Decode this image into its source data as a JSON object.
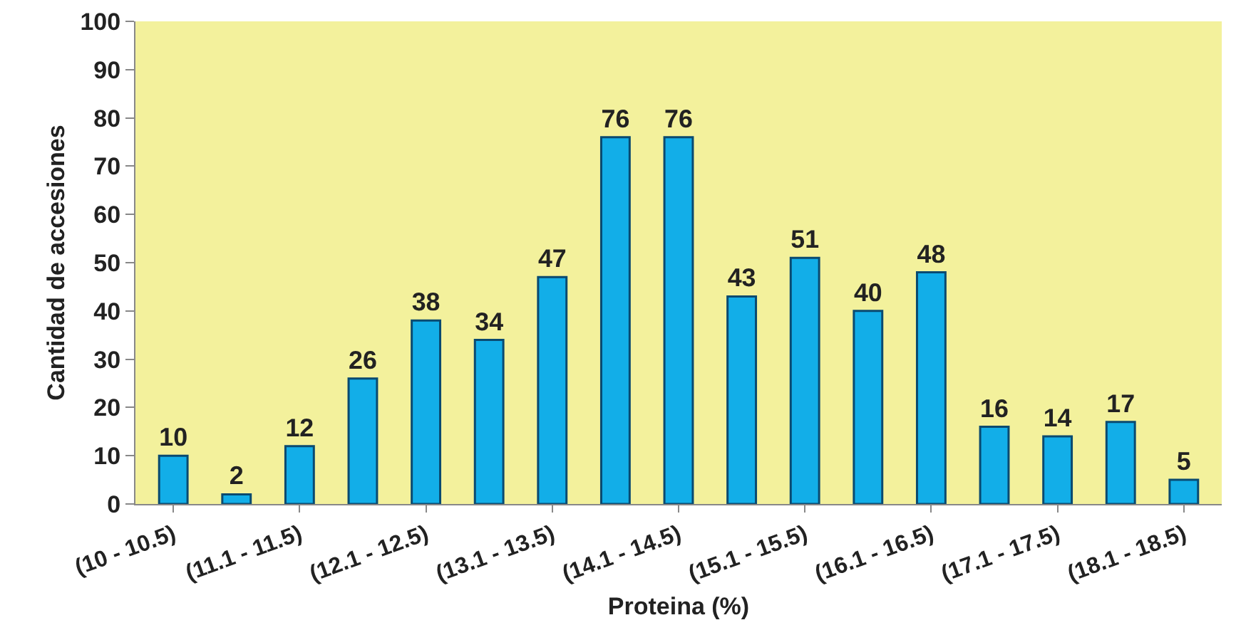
{
  "chart_data": {
    "type": "bar",
    "xlabel": "Proteina (%)",
    "ylabel": "Cantidad de accesiones",
    "categories": [
      "(10 - 10.5)",
      null,
      "(11.1 - 11.5)",
      null,
      "(12.1 - 12.5)",
      null,
      "(13.1 - 13.5)",
      null,
      "(14.1 - 14.5)",
      null,
      "(15.1 - 15.5)",
      null,
      "(16.1 - 16.5)",
      null,
      "(17.1 - 17.5)",
      null,
      "(18.1 - 18.5)"
    ],
    "values": [
      10,
      2,
      12,
      26,
      38,
      34,
      47,
      76,
      76,
      43,
      51,
      40,
      48,
      16,
      14,
      17,
      5
    ],
    "color": "#12aee8",
    "ylim": [
      0,
      100
    ],
    "yticks": [
      0,
      10,
      20,
      30,
      40,
      50,
      60,
      70,
      80,
      90,
      100
    ],
    "data_labels": true
  }
}
